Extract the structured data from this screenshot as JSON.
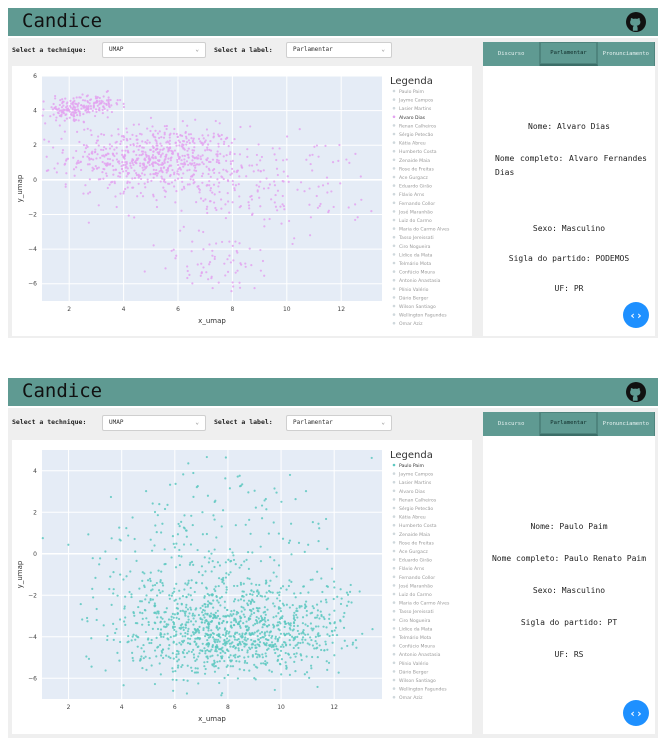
{
  "header": {
    "title": "Candice"
  },
  "controls": {
    "technique_label": "Select a technique:",
    "technique_value": "UMAP",
    "label_label": "Select a label:",
    "label_value": "Parlamentar"
  },
  "tabs": [
    "Discurso",
    "Parlamentar",
    "Pronunciamento"
  ],
  "legend_title": "Legenda",
  "legend_items": [
    "Paulo Paim",
    "Jayme Campos",
    "Lasier Martins",
    "Alvaro Dias",
    "Renan Calheiros",
    "Sérgio Petecão",
    "Kátia Abreu",
    "Humberto Costa",
    "Zenaide Maia",
    "Rose de Freitas",
    "Ace Gurgacz",
    "Eduardo Girão",
    "Flávio Arns",
    "Fernando Collor",
    "José Maranhão",
    "Luiz do Carmo",
    "Maria do Carmo Alves",
    "Tasso Jereissati",
    "Ciro Nogueira",
    "Lídice da Mata",
    "Telmário Mota",
    "Confúcio Moura",
    "Antonio Anastasia",
    "Plínio Valério",
    "Dário Berger",
    "Wilson Santiago",
    "Wellington Fagundes",
    "Omar Aziz"
  ],
  "panels": [
    {
      "selected_legend": "Alvaro Dias",
      "info": {
        "nome": "Nome: Alvaro Dias",
        "nome_completo": "Nome completo: Alvaro Fernandes Dias",
        "sexo": "Sexo: Masculino",
        "partido": "Sigla do partido: PODEMOS",
        "uf": "UF: PR"
      },
      "point_color": "#e3a3f0",
      "chart_data": {
        "type": "scatter",
        "xlabel": "x_umap",
        "ylabel": "y_umap",
        "xlim": [
          1,
          13.5
        ],
        "ylim": [
          -7,
          6
        ],
        "xticks": [
          2,
          4,
          6,
          8,
          10,
          12
        ],
        "yticks": [
          -6,
          -4,
          -2,
          0,
          2,
          4,
          6
        ],
        "x_tick_labels": [
          "2",
          "4",
          "6",
          "8",
          "10",
          "12"
        ],
        "y_tick_labels": [
          "−6",
          "−4",
          "−2",
          "0",
          "2",
          "4",
          "6"
        ],
        "series": [
          {
            "values_desc": "dense clusters"
          }
        ]
      }
    },
    {
      "selected_legend": "Paulo Paim",
      "info": {
        "nome": "Nome: Paulo Paim",
        "nome_completo": "Nome completo: Paulo Renato Paim",
        "sexo": "Sexo: Masculino",
        "partido": "Sigla do partido: PT",
        "uf": "UF: RS"
      },
      "point_color": "#5cc8c0",
      "chart_data": {
        "type": "scatter",
        "xlabel": "x_umap",
        "ylabel": "y_umap",
        "xlim": [
          1,
          13.8
        ],
        "ylim": [
          -7,
          5
        ],
        "xticks": [
          2,
          4,
          6,
          8,
          10,
          12
        ],
        "yticks": [
          -6,
          -4,
          -2,
          0,
          2,
          4
        ],
        "x_tick_labels": [
          "2",
          "4",
          "6",
          "8",
          "10",
          "12"
        ],
        "y_tick_labels": [
          "−6",
          "−4",
          "−2",
          "0",
          "2",
          "4"
        ],
        "series": [
          {
            "values_desc": "large cluster bottom center"
          }
        ]
      }
    }
  ]
}
